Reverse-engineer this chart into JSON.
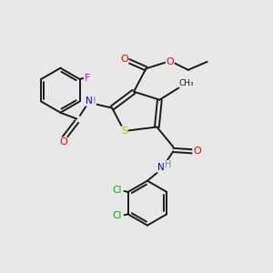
{
  "bg_color": "#e8e8e8",
  "bond_color": "#1a1a1a",
  "colors": {
    "N": "#0000ee",
    "O": "#ee0000",
    "S": "#bbbb00",
    "F": "#dd00dd",
    "Cl": "#00aa00",
    "C": "#1a1a1a",
    "H": "#888888"
  },
  "figsize": [
    3.0,
    3.0
  ],
  "dpi": 100,
  "lw": 1.4,
  "xlim": [
    0,
    10
  ],
  "ylim": [
    0,
    10
  ]
}
